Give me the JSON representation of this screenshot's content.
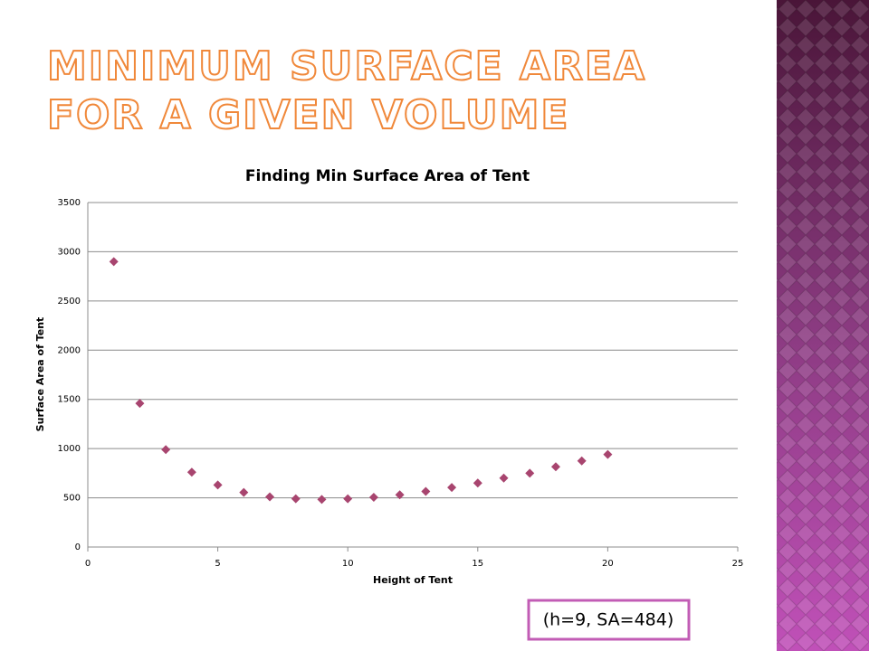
{
  "slide_title": [
    "MINIMUM SURFACE AREA",
    "FOR A GIVEN VOLUME"
  ],
  "annotation": "(h=9, SA=484)",
  "chart_data": {
    "type": "scatter",
    "title": "Finding Min Surface Area of Tent",
    "x_label": "Height of Tent",
    "y_label": "Surface Area of Tent",
    "series": [
      {
        "name": "Surface Area",
        "color": "#a8456f",
        "x": [
          1,
          2,
          3,
          4,
          5,
          6,
          7,
          8,
          9,
          10,
          11,
          12,
          13,
          14,
          15,
          16,
          17,
          18,
          19,
          20
        ],
        "values": [
          2900,
          1460,
          990,
          760,
          630,
          555,
          510,
          490,
          484,
          490,
          505,
          530,
          565,
          605,
          650,
          700,
          750,
          815,
          875,
          940
        ]
      }
    ],
    "xlim": [
      0,
      25
    ],
    "xticks": [
      0,
      5,
      10,
      15,
      20,
      25
    ],
    "ylim": [
      0,
      3500
    ],
    "yticks": [
      0,
      500,
      1000,
      1500,
      2000,
      2500,
      3000,
      3500
    ],
    "grid": true
  }
}
